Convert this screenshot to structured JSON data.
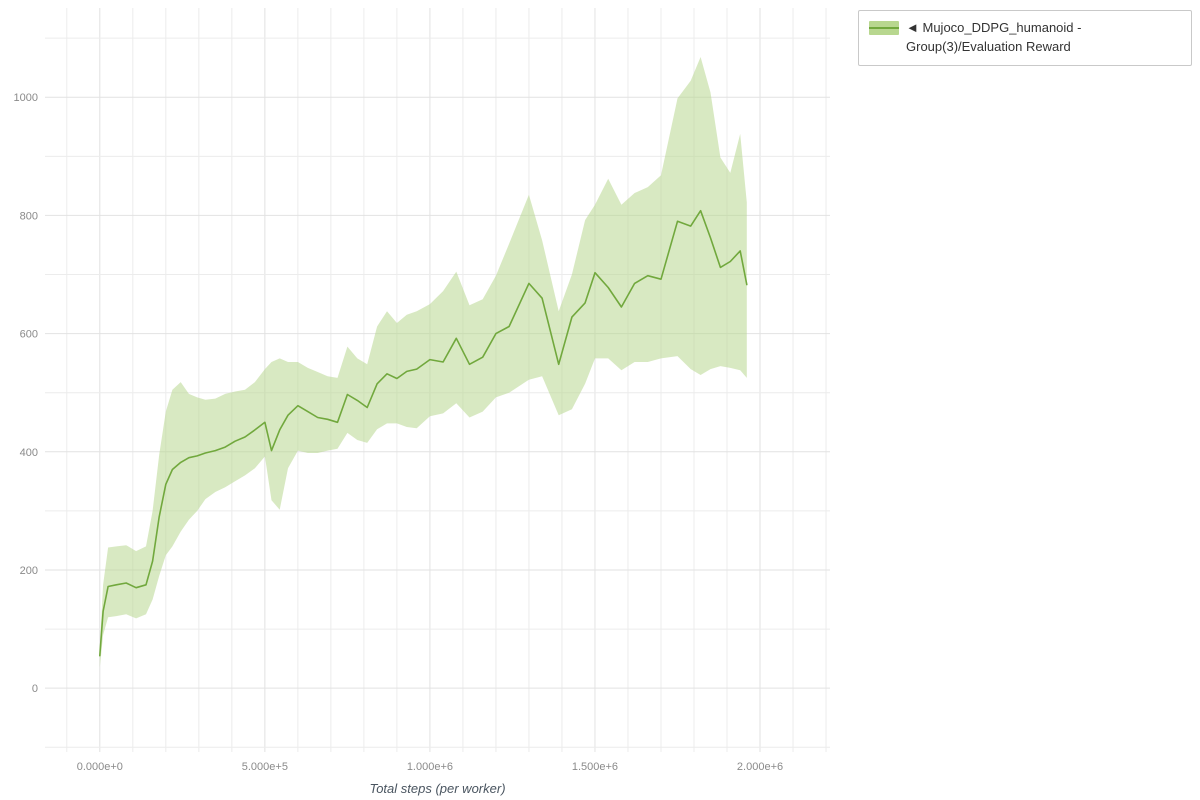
{
  "legend": {
    "collapse_icon": "◄",
    "series_label": "Mujoco_DDPG_humanoid - Group(3)/Evaluation Reward"
  },
  "colors": {
    "line": "#71a83d",
    "band": "#b8d78f",
    "band_opacity": 0.55,
    "grid_minor": "#ececec",
    "grid_major": "#e2e2e2",
    "tick_text": "#8a8a8a",
    "axis_label_text": "#4a5560"
  },
  "chart_data": {
    "type": "line",
    "title": "",
    "xlabel": "Total steps (per worker)",
    "ylabel": "",
    "legend_position": "top-right",
    "grid": true,
    "xlim": [
      -166000,
      2212000
    ],
    "ylim": [
      -108,
      1151
    ],
    "x_tick_values": [
      0,
      500000,
      1000000,
      1500000,
      2000000
    ],
    "x_tick_labels": [
      "0.000e+0",
      "5.000e+5",
      "1.000e+6",
      "1.500e+6",
      "2.000e+6"
    ],
    "y_tick_values": [
      0,
      200,
      400,
      600,
      800,
      1000
    ],
    "y_tick_labels": [
      "0",
      "200",
      "400",
      "600",
      "800",
      "1000"
    ],
    "minor_x_step": 100000,
    "minor_y_step": 100,
    "series": [
      {
        "name": "Mujoco_DDPG_humanoid - Group(3)/Evaluation Reward",
        "color": "#71a83d",
        "band_color": "#b8d78f",
        "x": [
          0,
          10000,
          25000,
          50000,
          80000,
          110000,
          140000,
          160000,
          180000,
          200000,
          220000,
          245000,
          270000,
          295000,
          320000,
          350000,
          380000,
          410000,
          440000,
          470000,
          500000,
          520000,
          545000,
          570000,
          600000,
          630000,
          660000,
          690000,
          720000,
          750000,
          780000,
          810000,
          840000,
          870000,
          900000,
          930000,
          960000,
          1000000,
          1040000,
          1080000,
          1120000,
          1160000,
          1200000,
          1240000,
          1300000,
          1340000,
          1390000,
          1430000,
          1470000,
          1500000,
          1540000,
          1580000,
          1620000,
          1660000,
          1700000,
          1750000,
          1790000,
          1820000,
          1850000,
          1880000,
          1910000,
          1940000,
          1960000
        ],
        "mean": [
          55,
          130,
          172,
          175,
          178,
          170,
          175,
          215,
          290,
          345,
          370,
          382,
          390,
          393,
          398,
          402,
          408,
          418,
          425,
          437,
          450,
          402,
          437,
          462,
          478,
          468,
          458,
          455,
          450,
          497,
          487,
          475,
          515,
          532,
          524,
          536,
          540,
          556,
          552,
          592,
          548,
          560,
          600,
          612,
          685,
          660,
          548,
          628,
          652,
          703,
          678,
          645,
          685,
          698,
          692,
          790,
          782,
          808,
          762,
          712,
          722,
          740,
          683
        ],
        "lower": [
          35,
          90,
          120,
          122,
          125,
          118,
          125,
          150,
          190,
          225,
          240,
          265,
          285,
          300,
          320,
          332,
          340,
          350,
          360,
          372,
          392,
          318,
          302,
          372,
          402,
          398,
          398,
          402,
          405,
          432,
          420,
          415,
          438,
          448,
          448,
          442,
          440,
          460,
          465,
          482,
          458,
          468,
          492,
          500,
          522,
          528,
          462,
          472,
          515,
          558,
          558,
          538,
          552,
          552,
          558,
          562,
          540,
          530,
          540,
          545,
          542,
          538,
          525
        ],
        "upper": [
          70,
          175,
          238,
          240,
          242,
          232,
          240,
          300,
          395,
          468,
          505,
          518,
          498,
          492,
          488,
          490,
          498,
          502,
          505,
          518,
          540,
          552,
          558,
          552,
          552,
          542,
          535,
          528,
          525,
          578,
          558,
          548,
          612,
          638,
          618,
          632,
          638,
          650,
          672,
          705,
          648,
          658,
          698,
          752,
          835,
          758,
          638,
          700,
          792,
          818,
          862,
          818,
          838,
          848,
          868,
          998,
          1028,
          1068,
          1008,
          898,
          872,
          938,
          822
        ]
      }
    ]
  }
}
